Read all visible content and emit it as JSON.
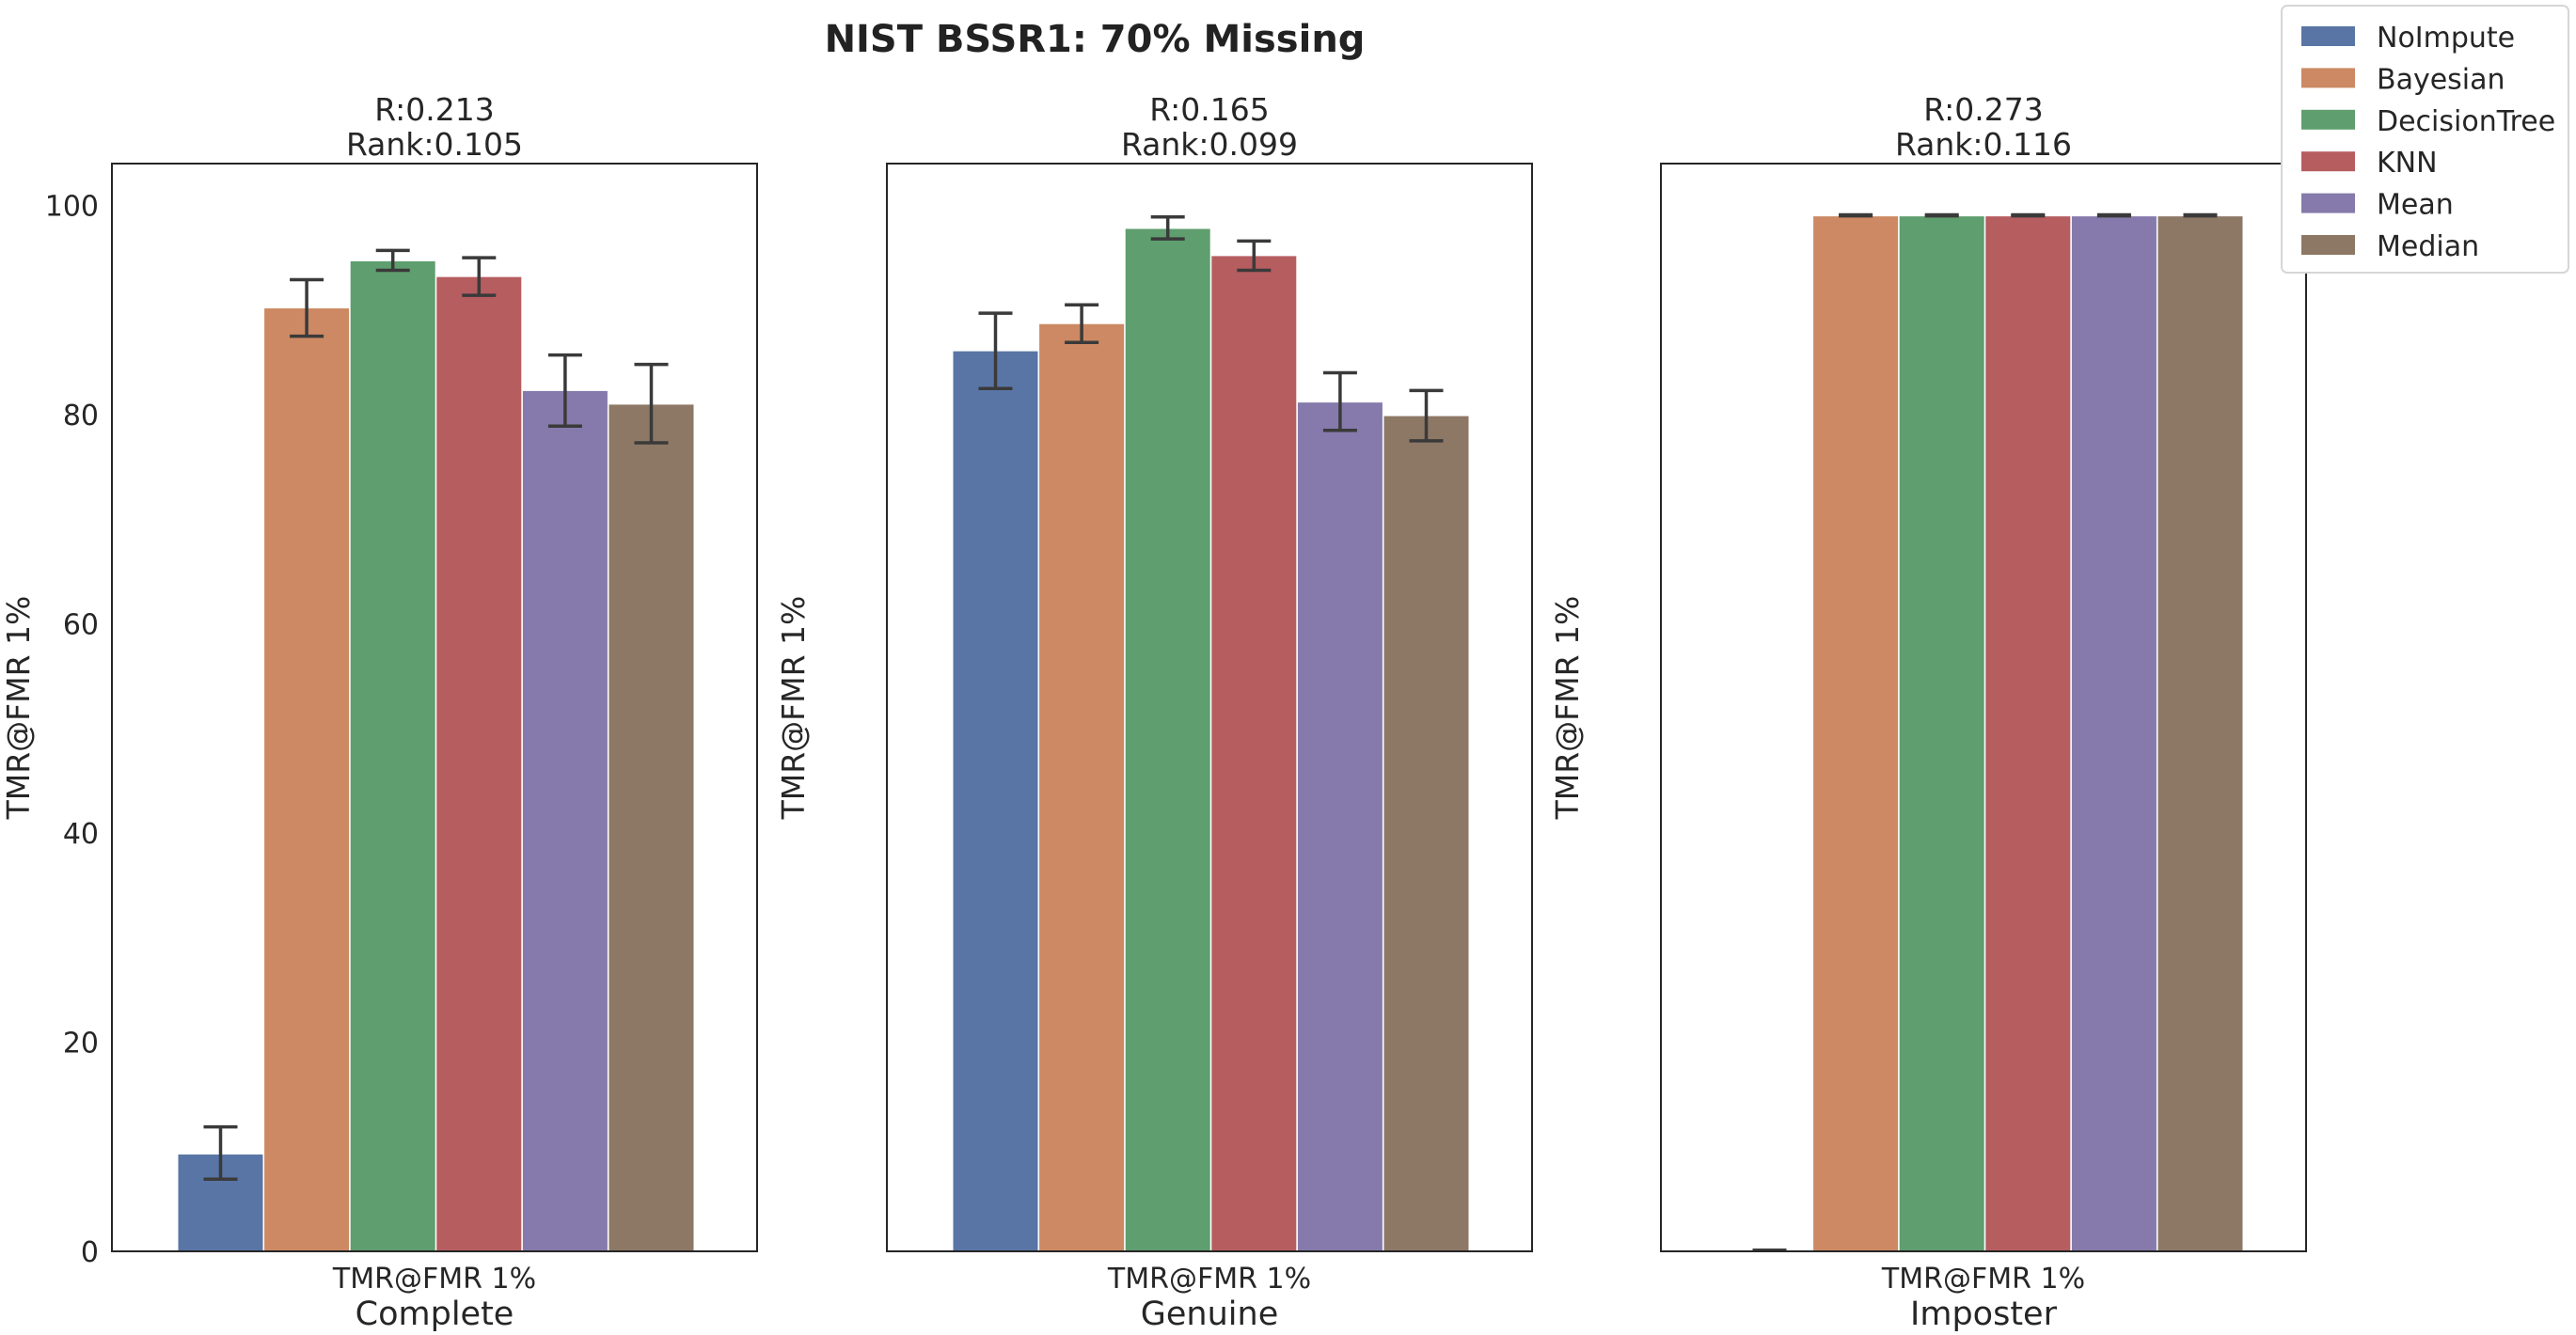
{
  "chart_data": {
    "type": "bar",
    "title": "NIST BSSR1: 70% Missing",
    "legend": {
      "placement": "top-right",
      "entries": [
        "NoImpute",
        "Bayesian",
        "DecisionTree",
        "KNN",
        "Mean",
        "Median"
      ]
    },
    "colors": {
      "NoImpute": "#5975a5",
      "Bayesian": "#cc8963",
      "DecisionTree": "#5f9e6e",
      "KNN": "#b65d60",
      "Mean": "#857aab",
      "Median": "#8d7866",
      "error_bar": "#3a3a3a"
    },
    "ylim": [
      0,
      104
    ],
    "yticks": [
      0,
      20,
      40,
      60,
      80,
      100
    ],
    "grid": false,
    "panels": [
      {
        "title_line1": "R:0.213",
        "title_line2": "Rank:0.105",
        "category": "TMR@FMR 1%",
        "xlabel": "Complete",
        "ylabel": "TMR@FMR 1%",
        "show_yticks": true,
        "series": [
          {
            "name": "NoImpute",
            "value": 9.3,
            "err_low": 6.9,
            "err_high": 11.9
          },
          {
            "name": "Bayesian",
            "value": 90.2,
            "err_low": 87.5,
            "err_high": 92.9
          },
          {
            "name": "DecisionTree",
            "value": 94.7,
            "err_low": 93.8,
            "err_high": 95.7
          },
          {
            "name": "KNN",
            "value": 93.2,
            "err_low": 91.4,
            "err_high": 95.0
          },
          {
            "name": "Mean",
            "value": 82.3,
            "err_low": 78.9,
            "err_high": 85.7
          },
          {
            "name": "Median",
            "value": 81.0,
            "err_low": 77.3,
            "err_high": 84.8
          }
        ]
      },
      {
        "title_line1": "R:0.165",
        "title_line2": "Rank:0.099",
        "category": "TMR@FMR 1%",
        "xlabel": "Genuine",
        "ylabel": "TMR@FMR 1%",
        "show_yticks": false,
        "series": [
          {
            "name": "NoImpute",
            "value": 86.1,
            "err_low": 82.5,
            "err_high": 89.7
          },
          {
            "name": "Bayesian",
            "value": 88.7,
            "err_low": 86.9,
            "err_high": 90.5
          },
          {
            "name": "DecisionTree",
            "value": 97.8,
            "err_low": 96.8,
            "err_high": 98.9
          },
          {
            "name": "KNN",
            "value": 95.2,
            "err_low": 93.8,
            "err_high": 96.6
          },
          {
            "name": "Mean",
            "value": 81.2,
            "err_low": 78.5,
            "err_high": 84.0
          },
          {
            "name": "Median",
            "value": 79.9,
            "err_low": 77.5,
            "err_high": 82.3
          }
        ]
      },
      {
        "title_line1": "R:0.273",
        "title_line2": "Rank:0.116",
        "category": "TMR@FMR 1%",
        "xlabel": "Imposter",
        "ylabel": "TMR@FMR 1%",
        "show_yticks": false,
        "series": [
          {
            "name": "NoImpute",
            "value": 0.1,
            "err_low": 0.1,
            "err_high": 0.1
          },
          {
            "name": "Bayesian",
            "value": 99.0,
            "err_low": 99.0,
            "err_high": 99.1
          },
          {
            "name": "DecisionTree",
            "value": 99.0,
            "err_low": 99.0,
            "err_high": 99.1
          },
          {
            "name": "KNN",
            "value": 99.0,
            "err_low": 99.0,
            "err_high": 99.1
          },
          {
            "name": "Mean",
            "value": 99.0,
            "err_low": 99.0,
            "err_high": 99.1
          },
          {
            "name": "Median",
            "value": 99.0,
            "err_low": 99.0,
            "err_high": 99.1
          }
        ]
      }
    ]
  }
}
